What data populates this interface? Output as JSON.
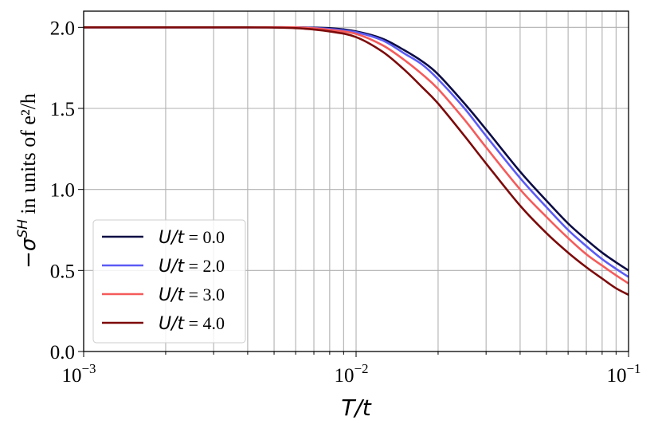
{
  "chart_data": {
    "type": "line",
    "xlabel": "T/t",
    "ylabel": {
      "prefix": "−σ",
      "superscript": "SH",
      "suffix": " in units of e²/h"
    },
    "xscale": "log",
    "xlim": [
      0.001,
      0.1
    ],
    "ylim": [
      0.0,
      2.1
    ],
    "grid": true,
    "legend_position": "lower-left",
    "x_ticks": [
      {
        "base": "10",
        "exp": "−3"
      },
      {
        "base": "10",
        "exp": "−2"
      },
      {
        "base": "10",
        "exp": "−1"
      }
    ],
    "y_ticks": [
      "0.0",
      "0.5",
      "1.0",
      "1.5",
      "2.0"
    ],
    "x": [
      0.001,
      0.002,
      0.004,
      0.006,
      0.008,
      0.01,
      0.0125,
      0.015,
      0.0175,
      0.02,
      0.025,
      0.03,
      0.04,
      0.05,
      0.06,
      0.07,
      0.08,
      0.09,
      0.1
    ],
    "series": [
      {
        "name_italic": "U/t",
        "name_value": " = 0.0",
        "color": "#0b0b45",
        "values": [
          2.0,
          2.0,
          2.0,
          2.0,
          1.995,
          1.975,
          1.93,
          1.86,
          1.79,
          1.71,
          1.53,
          1.37,
          1.11,
          0.93,
          0.79,
          0.69,
          0.61,
          0.55,
          0.5
        ]
      },
      {
        "name_italic": "U/t",
        "name_value": " = 2.0",
        "color": "#5b5bf5",
        "values": [
          2.0,
          2.0,
          2.0,
          2.0,
          1.99,
          1.97,
          1.92,
          1.84,
          1.77,
          1.68,
          1.5,
          1.33,
          1.07,
          0.89,
          0.75,
          0.65,
          0.57,
          0.51,
          0.46
        ]
      },
      {
        "name_italic": "U/t",
        "name_value": " = 3.0",
        "color": "#f55b5b",
        "values": [
          2.0,
          2.0,
          2.0,
          2.0,
          1.985,
          1.96,
          1.89,
          1.8,
          1.71,
          1.62,
          1.43,
          1.26,
          1.0,
          0.83,
          0.7,
          0.6,
          0.53,
          0.47,
          0.42
        ]
      },
      {
        "name_italic": "U/t",
        "name_value": " = 4.0",
        "color": "#7d0a0a",
        "values": [
          2.0,
          2.0,
          2.0,
          1.995,
          1.975,
          1.94,
          1.85,
          1.74,
          1.63,
          1.53,
          1.33,
          1.16,
          0.9,
          0.73,
          0.61,
          0.52,
          0.45,
          0.39,
          0.35
        ]
      }
    ]
  }
}
